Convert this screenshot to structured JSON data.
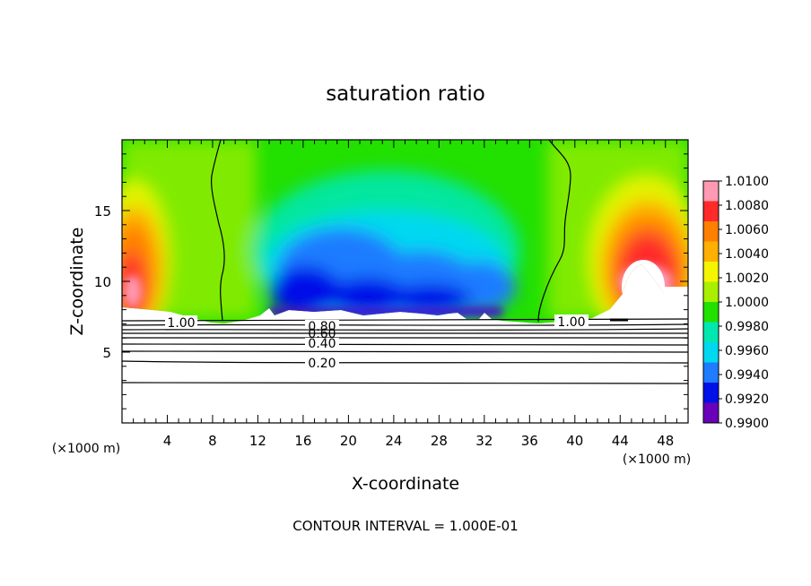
{
  "chart_data": {
    "type": "heatmap",
    "title": "saturation ratio",
    "xlabel": "X-coordinate",
    "ylabel": "Z-coordinate",
    "x_unit_left": "(×1000 m)",
    "x_unit_right": "(×1000 m)",
    "footer": "CONTOUR INTERVAL = 1.000E-01",
    "xlim": [
      0,
      50
    ],
    "ylim": [
      0,
      20
    ],
    "x_ticks": [
      "4",
      "8",
      "12",
      "16",
      "20",
      "24",
      "28",
      "32",
      "36",
      "40",
      "44",
      "48"
    ],
    "x_tick_values": [
      4,
      8,
      12,
      16,
      20,
      24,
      28,
      32,
      36,
      40,
      44,
      48
    ],
    "y_ticks": [
      "5",
      "10",
      "15"
    ],
    "y_tick_values": [
      5,
      10,
      15
    ],
    "colorbar": {
      "labels": [
        "1.0100",
        "1.0080",
        "1.0060",
        "1.0040",
        "1.0020",
        "1.0000",
        "0.9980",
        "0.9960",
        "0.9940",
        "0.9920",
        "0.9900"
      ],
      "values": [
        1.01,
        1.008,
        1.006,
        1.004,
        1.002,
        1.0,
        0.998,
        0.996,
        0.994,
        0.992,
        0.99
      ],
      "colors": [
        "#ff9ab2",
        "#ff2a2a",
        "#ff7f00",
        "#ffb000",
        "#f5f500",
        "#a8f000",
        "#22e000",
        "#00e8b0",
        "#00d8f0",
        "#1e7cff",
        "#0010e8",
        "#6a00b8"
      ]
    },
    "contour_labels": [
      {
        "text": "1.00",
        "x": 5.5,
        "z": 7.0
      },
      {
        "text": "1.00",
        "x": 40.0,
        "z": 7.0
      },
      {
        "text": "0.80",
        "x": 17.5,
        "z": 6.9
      },
      {
        "text": "0.60",
        "x": 17.5,
        "z": 6.4
      },
      {
        "text": "0.40",
        "x": 17.5,
        "z": 5.5
      },
      {
        "text": "0.20",
        "x": 17.5,
        "z": 4.0
      }
    ],
    "contour_levels_z": [
      7.2,
      6.95,
      6.75,
      6.55,
      6.3,
      6.0,
      5.6,
      5.0,
      4.4,
      2.9
    ],
    "saturation_line_left_x": [
      8.5,
      8.4,
      8.0,
      8.6,
      8.4,
      9.0,
      9.2,
      8.5,
      8.2
    ],
    "saturation_line_right_x": [
      38.6,
      39.3,
      39.5,
      38.8,
      38.2,
      37.6,
      37.2,
      36.8,
      36.8
    ],
    "saturation_line_z": [
      20,
      17.5,
      15,
      13,
      11,
      10,
      9,
      8,
      7.1
    ]
  }
}
